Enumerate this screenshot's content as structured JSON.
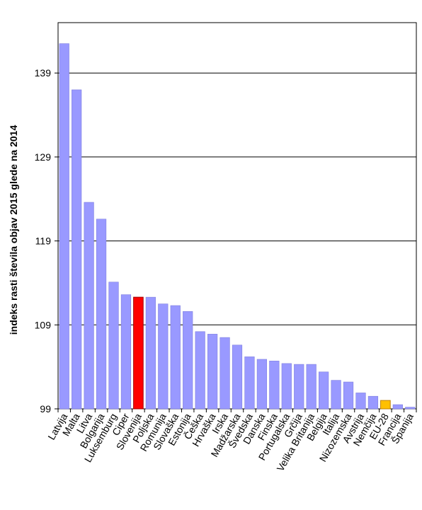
{
  "chart_data": {
    "type": "bar",
    "title": "",
    "xlabel": "",
    "ylabel": "indeks rasti števila objav 2015 glede na 2014",
    "ylim": [
      99,
      145
    ],
    "yticks": [
      99,
      109,
      119,
      129,
      139
    ],
    "grid": true,
    "categories": [
      "Latvija",
      "Malta",
      "Litva",
      "Bolgarija",
      "Luksemburg",
      "Ciper",
      "Slovenija",
      "Poljska",
      "Romunija",
      "Slovaška",
      "Estonija",
      "Češka",
      "Hrvaška",
      "Irska",
      "Madžarska",
      "Švedska",
      "Danska",
      "Finska",
      "Portugalska",
      "Grčija",
      "Velika Britanija",
      "Belgija",
      "Italija",
      "Nizozemska",
      "Avstrija",
      "Nemčija",
      "EU-28",
      "Francija",
      "Španija"
    ],
    "values": [
      142.5,
      137.0,
      123.6,
      121.6,
      114.1,
      112.6,
      112.3,
      112.3,
      111.5,
      111.3,
      110.6,
      108.2,
      107.9,
      107.5,
      106.6,
      105.2,
      104.9,
      104.7,
      104.4,
      104.3,
      104.3,
      103.4,
      102.4,
      102.2,
      100.9,
      100.5,
      100.0,
      99.5,
      99.2
    ],
    "colors": {
      "default": "#9999ff",
      "default_stroke": "#7f7fdf",
      "highlight_slovenia": "#ff0000",
      "highlight_slovenia_stroke": "#a00000",
      "highlight_eu28": "#ffc000",
      "highlight_eu28_stroke": "#c08000",
      "grid": "#000000"
    },
    "highlights": {
      "Slovenija": "highlight_slovenia",
      "EU-28": "highlight_eu28"
    }
  }
}
